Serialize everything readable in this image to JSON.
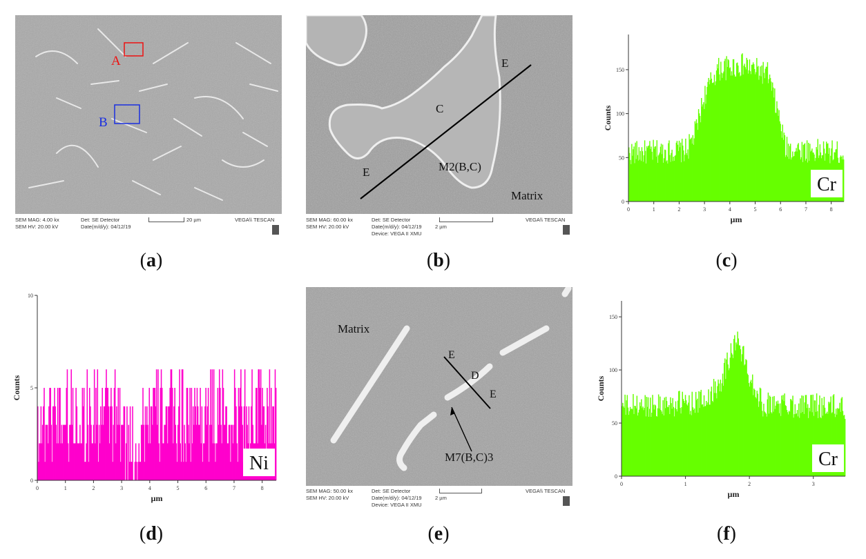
{
  "panels": {
    "a": {
      "caption_letter": "a",
      "labels": {
        "A": "A",
        "B": "B"
      },
      "info": {
        "mag": "SEM MAG: 4.00 kx",
        "hv": "SEM HV: 20.00 kV",
        "det": "Det: SE Detector",
        "date": "Date(m/d/y): 04/12/19",
        "scale": "20 µm",
        "brand": "VEGA\\\\ TESCAN"
      }
    },
    "b": {
      "caption_letter": "b",
      "labels": {
        "E1": "E",
        "E2": "E",
        "C": "C",
        "phase": "M2(B,C)",
        "matrix": "Matrix"
      },
      "info": {
        "mag": "SEM MAG: 60.00 kx",
        "hv": "SEM HV: 20.00 kV",
        "det": "Det: SE Detector",
        "date": "Date(m/d/y): 04/12/19",
        "scale": "2 µm",
        "device": "Device: VEGA II XMU",
        "brand": "VEGA\\\\ TESCAN"
      }
    },
    "c": {
      "caption_letter": "c",
      "element": "Cr"
    },
    "d": {
      "caption_letter": "d",
      "element": "Ni"
    },
    "e": {
      "caption_letter": "e",
      "labels": {
        "matrix": "Matrix",
        "E1": "E",
        "D": "D",
        "E2": "E",
        "phase": "M7(B,C)3"
      },
      "info": {
        "mag": "SEM MAG: 50.00 kx",
        "hv": "SEM HV: 20.00 kV",
        "det": "Det: SE Detector",
        "date": "Date(m/d/y): 04/12/19",
        "scale": "2 µm",
        "device": "Device: VEGA II XMU",
        "brand": "VEGA\\\\ TESCAN"
      }
    },
    "f": {
      "caption_letter": "f",
      "element": "Cr"
    }
  },
  "chart_data": [
    {
      "id": "c",
      "type": "bar",
      "element": "Cr",
      "color": "#66ff00",
      "xlabel": "µm",
      "ylabel": "Counts",
      "xlim": [
        0,
        8.5
      ],
      "ylim": [
        0,
        190
      ],
      "xticks": [
        0,
        1,
        2,
        3,
        4,
        5,
        6,
        7,
        8
      ],
      "yticks": [
        0,
        50,
        100,
        150
      ],
      "profile": {
        "x": [
          0,
          2.3,
          2.6,
          3.0,
          3.5,
          4.5,
          5.5,
          5.9,
          6.2,
          8.5
        ],
        "y": [
          55,
          58,
          75,
          120,
          150,
          155,
          145,
          100,
          60,
          55
        ]
      },
      "noise": 14
    },
    {
      "id": "d",
      "type": "bar",
      "element": "Ni",
      "color": "#ff00cc",
      "xlabel": "µm",
      "ylabel": "Counts",
      "xlim": [
        0,
        8.5
      ],
      "ylim": [
        0,
        10
      ],
      "xticks": [
        0,
        1,
        2,
        3,
        4,
        5,
        6,
        7,
        8
      ],
      "yticks": [
        0,
        5,
        10
      ],
      "profile": {
        "x": [
          0,
          2.9,
          3.1,
          3.6,
          3.9,
          8.5
        ],
        "y": [
          3.5,
          3.5,
          2,
          2,
          3.5,
          3.5
        ]
      },
      "noise": 2.5
    },
    {
      "id": "f",
      "type": "bar",
      "element": "Cr",
      "color": "#66ff00",
      "xlabel": "µm",
      "ylabel": "Counts",
      "xlim": [
        0,
        3.5
      ],
      "ylim": [
        0,
        165
      ],
      "xticks": [
        0,
        1,
        2,
        3
      ],
      "yticks": [
        0,
        50,
        100,
        150
      ],
      "profile": {
        "x": [
          0,
          1.3,
          1.55,
          1.8,
          2.0,
          2.2,
          3.5
        ],
        "y": [
          65,
          70,
          90,
          130,
          95,
          68,
          65
        ]
      },
      "noise": 12
    }
  ]
}
